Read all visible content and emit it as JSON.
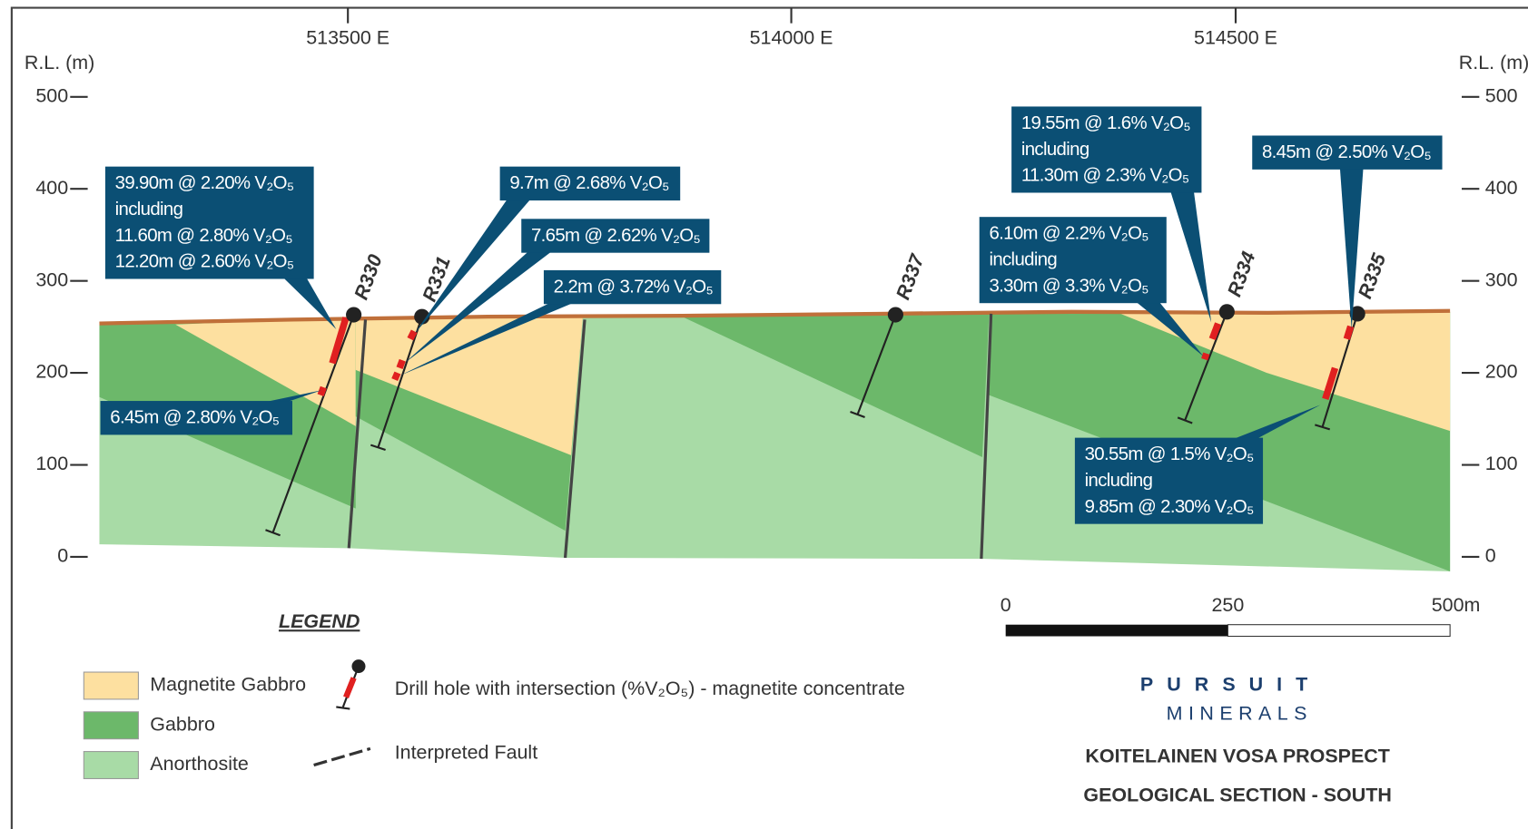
{
  "axes": {
    "left_label": "R.L. (m)",
    "right_label": "R.L. (m)",
    "rl_ticks": [
      500,
      400,
      300,
      200,
      100,
      0
    ],
    "easting_ticks": [
      "513500 E",
      "514000 E",
      "514500 E"
    ]
  },
  "drill_holes": [
    "R330",
    "R331",
    "R337",
    "R334",
    "R335"
  ],
  "annotations": [
    {
      "lines": [
        "39.90m @ 2.20% V₂O₅",
        "including",
        "11.60m @ 2.80% V₂O₅",
        "12.20m @ 2.60% V₂O₅"
      ]
    },
    {
      "lines": [
        "6.45m @ 2.80% V₂O₅"
      ]
    },
    {
      "lines": [
        "9.7m @ 2.68% V₂O₅"
      ]
    },
    {
      "lines": [
        "7.65m @ 2.62% V₂O₅"
      ]
    },
    {
      "lines": [
        "2.2m @ 3.72% V₂O₅"
      ]
    },
    {
      "lines": [
        "19.55m @ 1.6% V₂O₅",
        "including",
        "11.30m @ 2.3% V₂O₅"
      ]
    },
    {
      "lines": [
        "8.45m @ 2.50% V₂O₅"
      ]
    },
    {
      "lines": [
        "6.10m @ 2.2% V₂O₅",
        "including",
        "3.30m @ 3.3% V₂O₅"
      ]
    },
    {
      "lines": [
        "30.55m @ 1.5% V₂O₅",
        "including",
        "9.85m @ 2.30% V₂O₅"
      ]
    }
  ],
  "scale_bar": [
    "0",
    "250",
    "500m"
  ],
  "legend": {
    "title": "LEGEND",
    "items": [
      "Magnetite Gabbro",
      "Gabbro",
      "Anorthosite",
      "Drill hole with intersection (%V₂O₅) - magnetite concentrate",
      "Interpreted Fault"
    ]
  },
  "logo": {
    "name": "PURSUIT",
    "tagline": "MINERALS"
  },
  "title": [
    "KOITELAINEN VOSA PROSPECT",
    "GEOLOGICAL SECTION - SOUTH"
  ]
}
